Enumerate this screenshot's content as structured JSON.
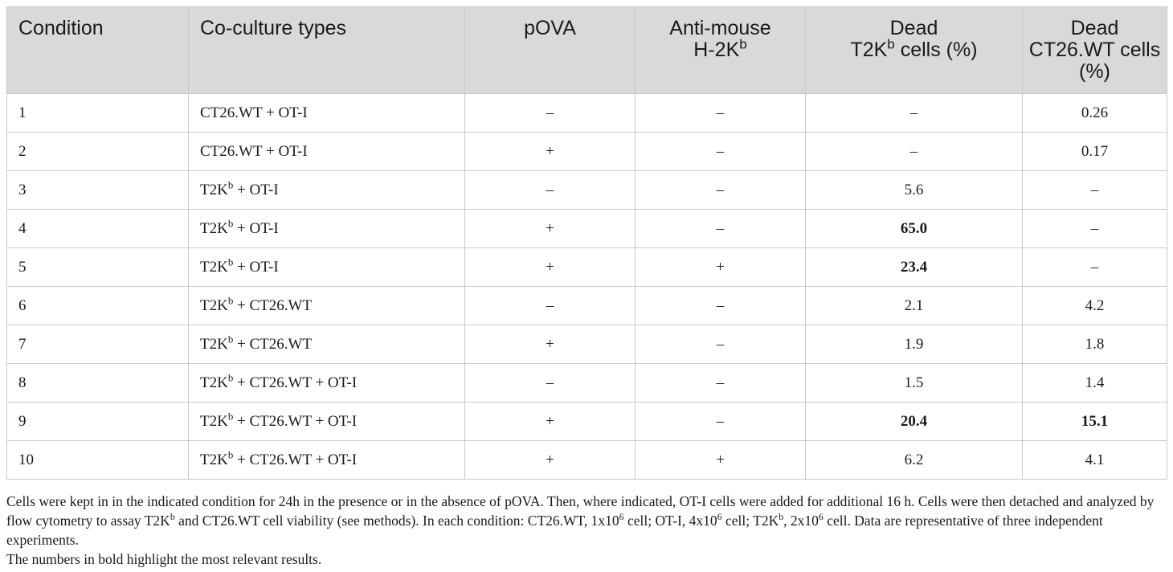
{
  "table": {
    "headers": [
      {
        "lines": [
          "Condition"
        ],
        "align": "left"
      },
      {
        "lines": [
          "Co-culture types"
        ],
        "align": "left"
      },
      {
        "lines": [
          "pOVA"
        ],
        "align": "center"
      },
      {
        "lines": [
          "Anti-mouse",
          "H-2K|b"
        ],
        "align": "center"
      },
      {
        "lines": [
          "Dead",
          "T2K|b| cells (%)"
        ],
        "align": "center"
      },
      {
        "lines": [
          "Dead",
          "CT26.WT cells",
          "(%)"
        ],
        "align": "center"
      }
    ],
    "rows": [
      {
        "condition": "1",
        "coculture": "CT26.WT + OT-I",
        "pova": "–",
        "antibody": "–",
        "dead_t2kb": "–",
        "dead_ct26": "0.26",
        "bold_t2kb": false,
        "bold_ct26": false
      },
      {
        "condition": "2",
        "coculture": "CT26.WT + OT-I",
        "pova": "+",
        "antibody": "–",
        "dead_t2kb": "–",
        "dead_ct26": "0.17",
        "bold_t2kb": false,
        "bold_ct26": false
      },
      {
        "condition": "3",
        "coculture": "T2K|b| + OT-I",
        "pova": "–",
        "antibody": "–",
        "dead_t2kb": "5.6",
        "dead_ct26": "–",
        "bold_t2kb": false,
        "bold_ct26": false
      },
      {
        "condition": "4",
        "coculture": "T2K|b| + OT-I",
        "pova": "+",
        "antibody": "–",
        "dead_t2kb": "65.0",
        "dead_ct26": "–",
        "bold_t2kb": true,
        "bold_ct26": false
      },
      {
        "condition": "5",
        "coculture": "T2K|b| + OT-I",
        "pova": "+",
        "antibody": "+",
        "dead_t2kb": "23.4",
        "dead_ct26": "–",
        "bold_t2kb": true,
        "bold_ct26": false
      },
      {
        "condition": "6",
        "coculture": "T2K|b| + CT26.WT",
        "pova": "–",
        "antibody": "–",
        "dead_t2kb": "2.1",
        "dead_ct26": "4.2",
        "bold_t2kb": false,
        "bold_ct26": false
      },
      {
        "condition": "7",
        "coculture": "T2K|b| + CT26.WT",
        "pova": "+",
        "antibody": "–",
        "dead_t2kb": "1.9",
        "dead_ct26": "1.8",
        "bold_t2kb": false,
        "bold_ct26": false
      },
      {
        "condition": "8",
        "coculture": "T2K|b| + CT26.WT + OT-I",
        "pova": "–",
        "antibody": "–",
        "dead_t2kb": "1.5",
        "dead_ct26": "1.4",
        "bold_t2kb": false,
        "bold_ct26": false
      },
      {
        "condition": "9",
        "coculture": "T2K|b| + CT26.WT + OT-I",
        "pova": "+",
        "antibody": "–",
        "dead_t2kb": "20.4",
        "dead_ct26": "15.1",
        "bold_t2kb": true,
        "bold_ct26": true
      },
      {
        "condition": "10",
        "coculture": "T2K|b| + CT26.WT + OT-I",
        "pova": "+",
        "antibody": "+",
        "dead_t2kb": "6.2",
        "dead_ct26": "4.1",
        "bold_t2kb": false,
        "bold_ct26": false
      }
    ]
  },
  "footnotes": [
    "Cells were kept in in the indicated condition for 24h in the presence or in the absence of pOVA. Then, where indicated, OT-I cells were added for additional 16 h. Cells were then detached and analyzed by flow cytometry to assay T2K|b| and CT26.WT cell viability (see methods). In each condition: CT26.WT, 1x10|6| cell; OT-I, 4x10|6| cell; T2K|b|, 2x10|6| cell. Data are representative of three independent experiments.",
    "The numbers in bold highlight the most relevant results."
  ],
  "colors": {
    "header_bg": "#d9d9d9",
    "border": "#c9c9c9",
    "text": "#1a1a1a"
  }
}
